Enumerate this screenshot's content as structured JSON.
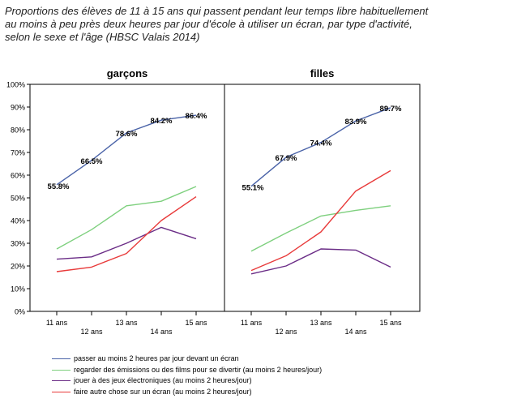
{
  "chart_data": {
    "type": "line",
    "title": [
      "Proportions des élèves de 11 à 15 ans qui passent pendant leur temps libre habituellement",
      "au moins à peu près deux heures par jour d'école à utiliser un écran, par type d'activité,",
      "selon le sexe et l'âge (HBSC Valais 2014)"
    ],
    "categories": [
      "11 ans",
      "12 ans",
      "13 ans",
      "14 ans",
      "15 ans"
    ],
    "y_ticks": [
      "0%",
      "10%",
      "20%",
      "30%",
      "40%",
      "50%",
      "60%",
      "70%",
      "80%",
      "90%",
      "100%"
    ],
    "ylim": [
      0,
      100
    ],
    "grid": false,
    "legend_position": "bottom",
    "panels": [
      {
        "label": "garçons",
        "series": [
          {
            "key": "ecran",
            "values": [
              55.8,
              66.5,
              78.6,
              84.2,
              86.4
            ],
            "labels": [
              "55.8%",
              "66.5%",
              "78.6%",
              "84.2%",
              "86.4%"
            ]
          },
          {
            "key": "films",
            "values": [
              27.5,
              36,
              46.5,
              48.5,
              55
            ]
          },
          {
            "key": "jeux",
            "values": [
              23,
              24,
              30,
              37,
              32
            ]
          },
          {
            "key": "autre",
            "values": [
              17.5,
              19.5,
              25.5,
              40,
              50.5
            ]
          }
        ]
      },
      {
        "label": "filles",
        "series": [
          {
            "key": "ecran",
            "values": [
              55.1,
              67.9,
              74.4,
              83.9,
              89.7
            ],
            "labels": [
              "55.1%",
              "67.9%",
              "74.4%",
              "83.9%",
              "89.7%"
            ]
          },
          {
            "key": "films",
            "values": [
              26.5,
              34.5,
              42,
              44.5,
              46.5
            ]
          },
          {
            "key": "jeux",
            "values": [
              16.5,
              20,
              27.5,
              27,
              19.5
            ]
          },
          {
            "key": "autre",
            "values": [
              18,
              24.5,
              35,
              53,
              62
            ]
          }
        ]
      }
    ],
    "legend": [
      {
        "key": "ecran",
        "name": "passer au moins 2 heures par jour devant un écran",
        "color": "#4a63a8"
      },
      {
        "key": "films",
        "name": "regarder des émissions ou des films pour se divertir (au moins 2 heures/jour)",
        "color": "#7ed07e"
      },
      {
        "key": "jeux",
        "name": "jouer à des jeux électroniques (au moins 2 heures/jour)",
        "color": "#6a2c86"
      },
      {
        "key": "autre",
        "name": "faire autre chose sur un écran (au moins 2 heures/jour)",
        "color": "#e83a3a"
      }
    ]
  }
}
